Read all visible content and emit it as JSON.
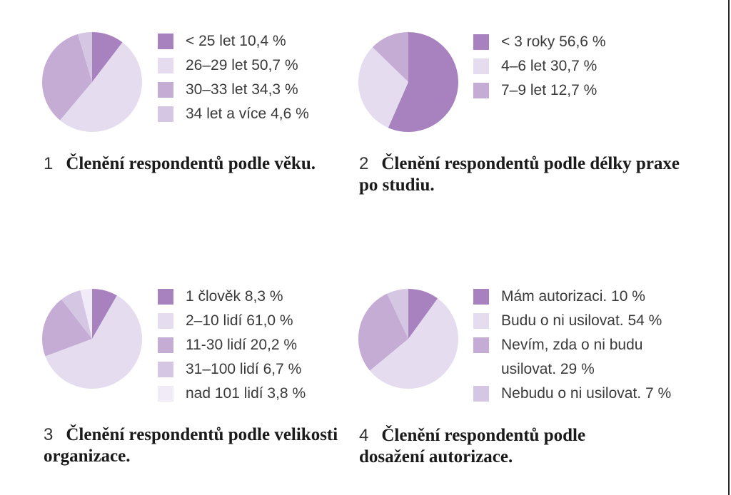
{
  "chart_data": [
    {
      "type": "pie",
      "number": "1",
      "title": "Členění respondentů podle věku.",
      "slices": [
        {
          "label": "< 25 let 10,4 %",
          "value": 10.4,
          "color": "#a882bf"
        },
        {
          "label": "26–29 let 50,7 %",
          "value": 50.7,
          "color": "#e5ddef"
        },
        {
          "label": "30–33 let 34,3 %",
          "value": 34.3,
          "color": "#c4acd5"
        },
        {
          "label": "34 let a více 4,6 %",
          "value": 4.6,
          "color": "#d5c7e3"
        }
      ]
    },
    {
      "type": "pie",
      "number": "2",
      "title": "Členění respondentů podle délky praxe po studiu.",
      "slices": [
        {
          "label": "< 3 roky 56,6 %",
          "value": 56.6,
          "color": "#a882bf"
        },
        {
          "label": "4–6 let 30,7 %",
          "value": 30.7,
          "color": "#e5ddef"
        },
        {
          "label": "7–9 let 12,7 %",
          "value": 12.7,
          "color": "#c4acd5"
        }
      ]
    },
    {
      "type": "pie",
      "number": "3",
      "title": "Členění respondentů podle velikosti organizace.",
      "slices": [
        {
          "label": "1 člověk 8,3 %",
          "value": 8.3,
          "color": "#a882bf"
        },
        {
          "label": "2–10 lidí 61,0 %",
          "value": 61.0,
          "color": "#e5ddef"
        },
        {
          "label": "11-30 lidí 20,2 %",
          "value": 20.2,
          "color": "#c4acd5"
        },
        {
          "label": "31–100 lidí 6,7 %",
          "value": 6.7,
          "color": "#d5c7e3"
        },
        {
          "label": "nad 101 lidí 3,8 %",
          "value": 3.8,
          "color": "#f0ebf6"
        }
      ]
    },
    {
      "type": "pie",
      "number": "4",
      "title": "Členění respondentů podle dosažení autorizace.",
      "slices": [
        {
          "label": "Mám autorizaci. 10 %",
          "value": 10,
          "color": "#a882bf"
        },
        {
          "label": "Budu o ni usilovat. 54 %",
          "value": 54,
          "color": "#e5ddef"
        },
        {
          "label": "Nevím, zda o ni budu usilovat. 29 %",
          "value": 29,
          "color": "#c4acd5"
        },
        {
          "label": "Nebudu o ni usilovat. 7 %",
          "value": 7,
          "color": "#d5c7e3"
        }
      ]
    }
  ]
}
